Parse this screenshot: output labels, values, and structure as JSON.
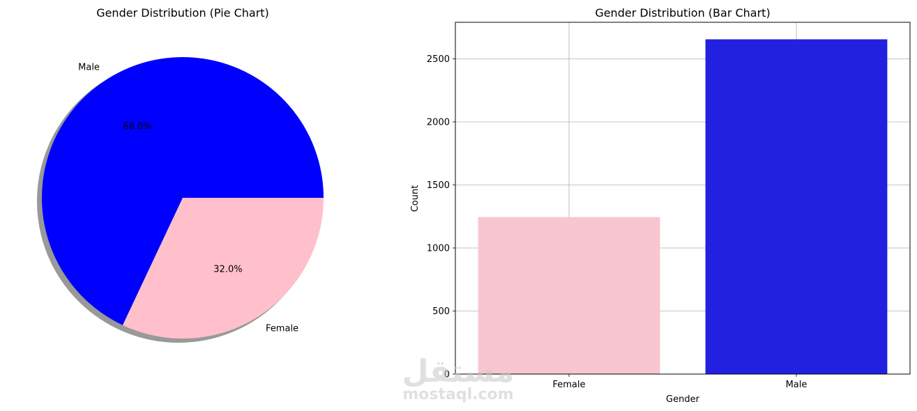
{
  "chart_data": [
    {
      "type": "pie",
      "title": "Gender Distribution (Pie Chart)",
      "slices": [
        {
          "label": "Male",
          "value": 68.0,
          "pct_label": "68.0%",
          "color": "#0000ff"
        },
        {
          "label": "Female",
          "value": 32.0,
          "pct_label": "32.0%",
          "color": "#ffc0cb"
        }
      ],
      "shadow": true
    },
    {
      "type": "bar",
      "title": "Gender Distribution (Bar Chart)",
      "categories": [
        "Female",
        "Male"
      ],
      "values": [
        1245,
        2655
      ],
      "colors": [
        "#f7c6d0",
        "#2121df"
      ],
      "xlabel": "Gender",
      "ylabel": "Count",
      "ylim": [
        0,
        2790
      ],
      "yticks": [
        0,
        500,
        1000,
        1500,
        2000,
        2500
      ],
      "grid": true
    }
  ],
  "watermark": {
    "arabic": "مستقل",
    "latin": "mostaql.com"
  }
}
